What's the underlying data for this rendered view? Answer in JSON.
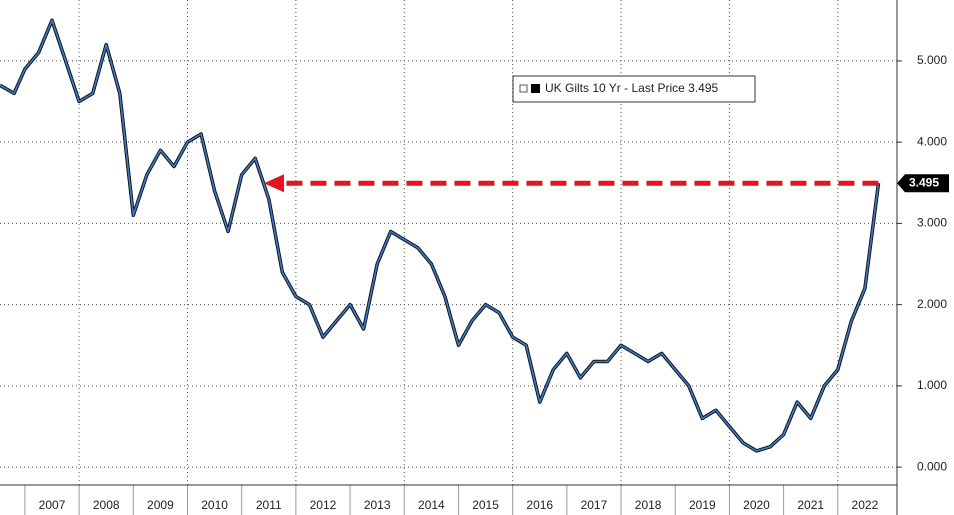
{
  "chart_data": {
    "type": "line",
    "x": [
      2006.54,
      2006.8,
      2007.0,
      2007.25,
      2007.5,
      2007.75,
      2008.0,
      2008.25,
      2008.5,
      2008.75,
      2009.0,
      2009.25,
      2009.5,
      2009.75,
      2010.0,
      2010.25,
      2010.5,
      2010.75,
      2011.0,
      2011.25,
      2011.5,
      2011.75,
      2012.0,
      2012.25,
      2012.5,
      2012.75,
      2013.0,
      2013.25,
      2013.5,
      2013.75,
      2014.0,
      2014.25,
      2014.5,
      2014.75,
      2015.0,
      2015.25,
      2015.5,
      2015.75,
      2016.0,
      2016.25,
      2016.5,
      2016.75,
      2017.0,
      2017.25,
      2017.5,
      2017.75,
      2018.0,
      2018.25,
      2018.5,
      2018.75,
      2019.0,
      2019.25,
      2019.5,
      2019.75,
      2020.0,
      2020.25,
      2020.5,
      2020.75,
      2021.0,
      2021.25,
      2021.5,
      2021.75,
      2022.0,
      2022.25,
      2022.5,
      2022.75
    ],
    "series": [
      {
        "name": "UK Gilts 10 Yr - Last Price 3.495",
        "color": "#3b7bc8",
        "values": [
          4.7,
          4.6,
          4.9,
          5.1,
          5.5,
          5.0,
          4.5,
          4.6,
          5.2,
          4.6,
          3.1,
          3.6,
          3.9,
          3.7,
          4.0,
          4.1,
          3.4,
          2.9,
          3.6,
          3.8,
          3.3,
          2.4,
          2.1,
          2.0,
          1.6,
          1.8,
          2.0,
          1.7,
          2.5,
          2.9,
          2.8,
          2.7,
          2.5,
          2.1,
          1.5,
          1.8,
          2.0,
          1.9,
          1.6,
          1.5,
          0.8,
          1.2,
          1.4,
          1.1,
          1.3,
          1.3,
          1.5,
          1.4,
          1.3,
          1.4,
          1.2,
          1.0,
          0.6,
          0.7,
          0.5,
          0.3,
          0.2,
          0.25,
          0.4,
          0.8,
          0.6,
          1.0,
          1.2,
          1.8,
          2.2,
          3.495
        ]
      }
    ],
    "xlim": [
      2006.54,
      2023.0
    ],
    "xticks": [
      2007,
      2008,
      2009,
      2010,
      2011,
      2012,
      2013,
      2014,
      2015,
      2016,
      2017,
      2018,
      2019,
      2020,
      2021,
      2022
    ],
    "ylim": [
      -0.22,
      5.75
    ],
    "yticks": [
      {
        "value": 0,
        "label": "0.000"
      },
      {
        "value": 1,
        "label": "1.000"
      },
      {
        "value": 2,
        "label": "2.000"
      },
      {
        "value": 3,
        "label": "3.000"
      },
      {
        "value": 4,
        "label": "4.000"
      },
      {
        "value": 5,
        "label": "5.000"
      }
    ],
    "grid": true,
    "arrow_color": "#e3141b"
  }
}
